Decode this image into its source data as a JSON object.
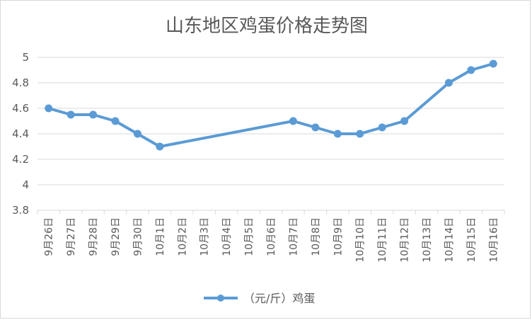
{
  "chart_data": {
    "type": "line",
    "title": "山东地区鸡蛋价格走势图",
    "categories": [
      "9月26日",
      "9月27日",
      "9月28日",
      "9月29日",
      "9月30日",
      "10月1日",
      "10月2日",
      "10月3日",
      "10月4日",
      "10月5日",
      "10月6日",
      "10月7日",
      "10月8日",
      "10月9日",
      "10月10日",
      "10月11日",
      "10月12日",
      "10月13日",
      "10月14日",
      "10月15日",
      "10月16日"
    ],
    "series": [
      {
        "name": "（元/斤）鸡蛋",
        "color": "#5b9bd5",
        "values": [
          4.6,
          4.55,
          4.55,
          4.5,
          4.4,
          4.3,
          null,
          null,
          null,
          null,
          null,
          4.5,
          4.45,
          4.4,
          4.4,
          4.45,
          4.5,
          null,
          4.8,
          4.9,
          4.95
        ]
      }
    ],
    "ylim": [
      3.8,
      5
    ],
    "yticks": [
      "3.8",
      "4",
      "4.2",
      "4.4",
      "4.6",
      "4.8",
      "5"
    ],
    "grid": true,
    "legend_position": "bottom"
  }
}
